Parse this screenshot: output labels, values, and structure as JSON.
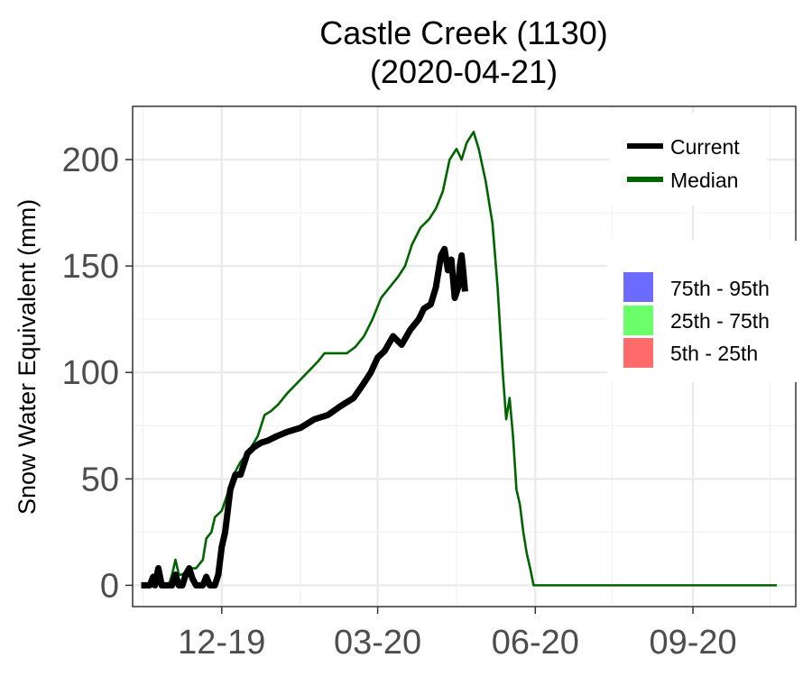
{
  "chart_data": {
    "type": "line",
    "title": "Castle Creek (1130)",
    "subtitle": "(2020-04-21)",
    "ylabel": "Snow Water Equivalent (mm)",
    "xlabel": "",
    "x_domain": [
      "2019-10-10",
      "2020-10-31"
    ],
    "ylim": [
      -10,
      225
    ],
    "y_ticks": [
      0,
      50,
      100,
      150,
      200
    ],
    "x_ticks": [
      {
        "date": "2019-12-01",
        "label": "12-19"
      },
      {
        "date": "2020-03-01",
        "label": "03-20"
      },
      {
        "date": "2020-06-01",
        "label": "06-20"
      },
      {
        "date": "2020-09-01",
        "label": "09-20"
      }
    ],
    "x_minor_ticks": [
      "2019-10-16",
      "2020-01-16",
      "2020-04-16",
      "2020-07-16",
      "2020-10-16"
    ],
    "grid": true,
    "legend_lines": [
      {
        "label": "Current",
        "color": "#000000"
      },
      {
        "label": "Median",
        "color": "#006400"
      }
    ],
    "legend_bands": [
      {
        "label": "75th - 95th",
        "color": "#6b6bff"
      },
      {
        "label": "25th - 75th",
        "color": "#6bff6b"
      },
      {
        "label": "5th - 25th",
        "color": "#ff6b6b"
      }
    ],
    "series": [
      {
        "name": "Current",
        "color": "#000000",
        "points": [
          [
            "2019-10-15",
            0
          ],
          [
            "2019-10-20",
            0
          ],
          [
            "2019-10-22",
            4
          ],
          [
            "2019-10-23",
            0
          ],
          [
            "2019-10-25",
            8
          ],
          [
            "2019-10-27",
            0
          ],
          [
            "2019-11-02",
            0
          ],
          [
            "2019-11-04",
            5
          ],
          [
            "2019-11-06",
            0
          ],
          [
            "2019-11-08",
            0
          ],
          [
            "2019-11-10",
            5
          ],
          [
            "2019-11-12",
            8
          ],
          [
            "2019-11-14",
            3
          ],
          [
            "2019-11-16",
            0
          ],
          [
            "2019-11-20",
            0
          ],
          [
            "2019-11-22",
            4
          ],
          [
            "2019-11-24",
            0
          ],
          [
            "2019-11-27",
            0
          ],
          [
            "2019-11-29",
            5
          ],
          [
            "2019-12-01",
            18
          ],
          [
            "2019-12-03",
            25
          ],
          [
            "2019-12-06",
            45
          ],
          [
            "2019-12-09",
            52
          ],
          [
            "2019-12-12",
            52
          ],
          [
            "2019-12-16",
            62
          ],
          [
            "2019-12-20",
            65
          ],
          [
            "2019-12-24",
            67
          ],
          [
            "2019-12-28",
            68
          ],
          [
            "2020-01-02",
            70
          ],
          [
            "2020-01-08",
            72
          ],
          [
            "2020-01-16",
            74
          ],
          [
            "2020-01-24",
            78
          ],
          [
            "2020-02-01",
            80
          ],
          [
            "2020-02-08",
            84
          ],
          [
            "2020-02-16",
            88
          ],
          [
            "2020-02-22",
            95
          ],
          [
            "2020-02-26",
            100
          ],
          [
            "2020-03-01",
            107
          ],
          [
            "2020-03-05",
            110
          ],
          [
            "2020-03-10",
            117
          ],
          [
            "2020-03-15",
            113
          ],
          [
            "2020-03-20",
            120
          ],
          [
            "2020-03-25",
            125
          ],
          [
            "2020-03-28",
            130
          ],
          [
            "2020-04-01",
            132
          ],
          [
            "2020-04-04",
            140
          ],
          [
            "2020-04-07",
            155
          ],
          [
            "2020-04-09",
            158
          ],
          [
            "2020-04-11",
            148
          ],
          [
            "2020-04-13",
            153
          ],
          [
            "2020-04-15",
            135
          ],
          [
            "2020-04-17",
            140
          ],
          [
            "2020-04-18",
            150
          ],
          [
            "2020-04-19",
            155
          ],
          [
            "2020-04-20",
            147
          ],
          [
            "2020-04-21",
            138
          ]
        ]
      },
      {
        "name": "Median",
        "color": "#006400",
        "points": [
          [
            "2019-10-15",
            0
          ],
          [
            "2019-10-22",
            0
          ],
          [
            "2019-10-24",
            3
          ],
          [
            "2019-10-26",
            0
          ],
          [
            "2019-10-31",
            0
          ],
          [
            "2019-11-02",
            5
          ],
          [
            "2019-11-04",
            12
          ],
          [
            "2019-11-06",
            5
          ],
          [
            "2019-11-08",
            5
          ],
          [
            "2019-11-12",
            8
          ],
          [
            "2019-11-16",
            8
          ],
          [
            "2019-11-20",
            12
          ],
          [
            "2019-11-22",
            22
          ],
          [
            "2019-11-25",
            25
          ],
          [
            "2019-11-27",
            32
          ],
          [
            "2019-12-01",
            35
          ],
          [
            "2019-12-04",
            42
          ],
          [
            "2019-12-08",
            52
          ],
          [
            "2019-12-12",
            58
          ],
          [
            "2019-12-16",
            62
          ],
          [
            "2019-12-19",
            66
          ],
          [
            "2019-12-22",
            70
          ],
          [
            "2019-12-26",
            80
          ],
          [
            "2019-12-30",
            82
          ],
          [
            "2020-01-03",
            85
          ],
          [
            "2020-01-08",
            90
          ],
          [
            "2020-01-14",
            95
          ],
          [
            "2020-01-20",
            100
          ],
          [
            "2020-01-26",
            105
          ],
          [
            "2020-01-30",
            109
          ],
          [
            "2020-02-05",
            109
          ],
          [
            "2020-02-12",
            109
          ],
          [
            "2020-02-17",
            112
          ],
          [
            "2020-02-22",
            117
          ],
          [
            "2020-02-27",
            125
          ],
          [
            "2020-03-03",
            135
          ],
          [
            "2020-03-08",
            140
          ],
          [
            "2020-03-13",
            145
          ],
          [
            "2020-03-17",
            150
          ],
          [
            "2020-03-21",
            160
          ],
          [
            "2020-03-26",
            168
          ],
          [
            "2020-03-31",
            172
          ],
          [
            "2020-04-04",
            177
          ],
          [
            "2020-04-08",
            185
          ],
          [
            "2020-04-12",
            200
          ],
          [
            "2020-04-16",
            205
          ],
          [
            "2020-04-19",
            200
          ],
          [
            "2020-04-22",
            208
          ],
          [
            "2020-04-26",
            213
          ],
          [
            "2020-04-29",
            205
          ],
          [
            "2020-05-03",
            190
          ],
          [
            "2020-05-07",
            170
          ],
          [
            "2020-05-10",
            140
          ],
          [
            "2020-05-13",
            100
          ],
          [
            "2020-05-15",
            78
          ],
          [
            "2020-05-17",
            88
          ],
          [
            "2020-05-19",
            70
          ],
          [
            "2020-05-21",
            45
          ],
          [
            "2020-05-23",
            38
          ],
          [
            "2020-05-25",
            25
          ],
          [
            "2020-05-27",
            15
          ],
          [
            "2020-05-29",
            8
          ],
          [
            "2020-05-31",
            0
          ],
          [
            "2020-06-10",
            0
          ],
          [
            "2020-07-01",
            0
          ],
          [
            "2020-08-01",
            0
          ],
          [
            "2020-09-01",
            0
          ],
          [
            "2020-10-20",
            0
          ]
        ]
      }
    ]
  }
}
